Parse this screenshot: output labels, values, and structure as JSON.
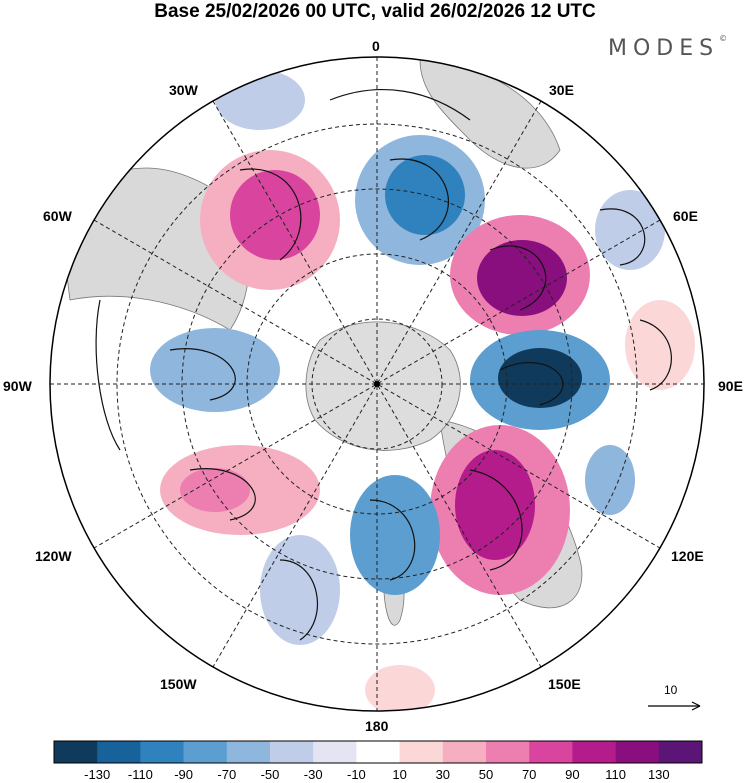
{
  "title": "Base 25/02/2026 00 UTC, valid 26/02/2026 12 UTC",
  "brand": "MODES",
  "brand_mark": "©",
  "longitude_labels": {
    "lon_0": "0",
    "lon_30e": "30E",
    "lon_60e": "60E",
    "lon_90e": "90E",
    "lon_120e": "120E",
    "lon_150e": "150E",
    "lon_180": "180",
    "lon_150w": "150W",
    "lon_120w": "120W",
    "lon_90w": "90W",
    "lon_60w": "60W",
    "lon_30w": "30W"
  },
  "reference_vector": "10",
  "colorbar": {
    "labels": [
      "-130",
      "-110",
      "-90",
      "-70",
      "-50",
      "-30",
      "-10",
      "10",
      "30",
      "50",
      "70",
      "90",
      "110",
      "130"
    ],
    "colors": [
      "#0f3a5c",
      "#17629a",
      "#2f82be",
      "#5c9ecf",
      "#8fb6dc",
      "#bfcde8",
      "#e4e4f2",
      "#ffffff",
      "#fbd7d8",
      "#f6afc0",
      "#ec7fb0",
      "#d9449e",
      "#b41c8c",
      "#8a0f7e",
      "#5b1577"
    ]
  },
  "map_colors": {
    "land": "#d9d9d9",
    "antarctica": "#dddddd",
    "coast": "#777777",
    "grid": "#222222"
  }
}
